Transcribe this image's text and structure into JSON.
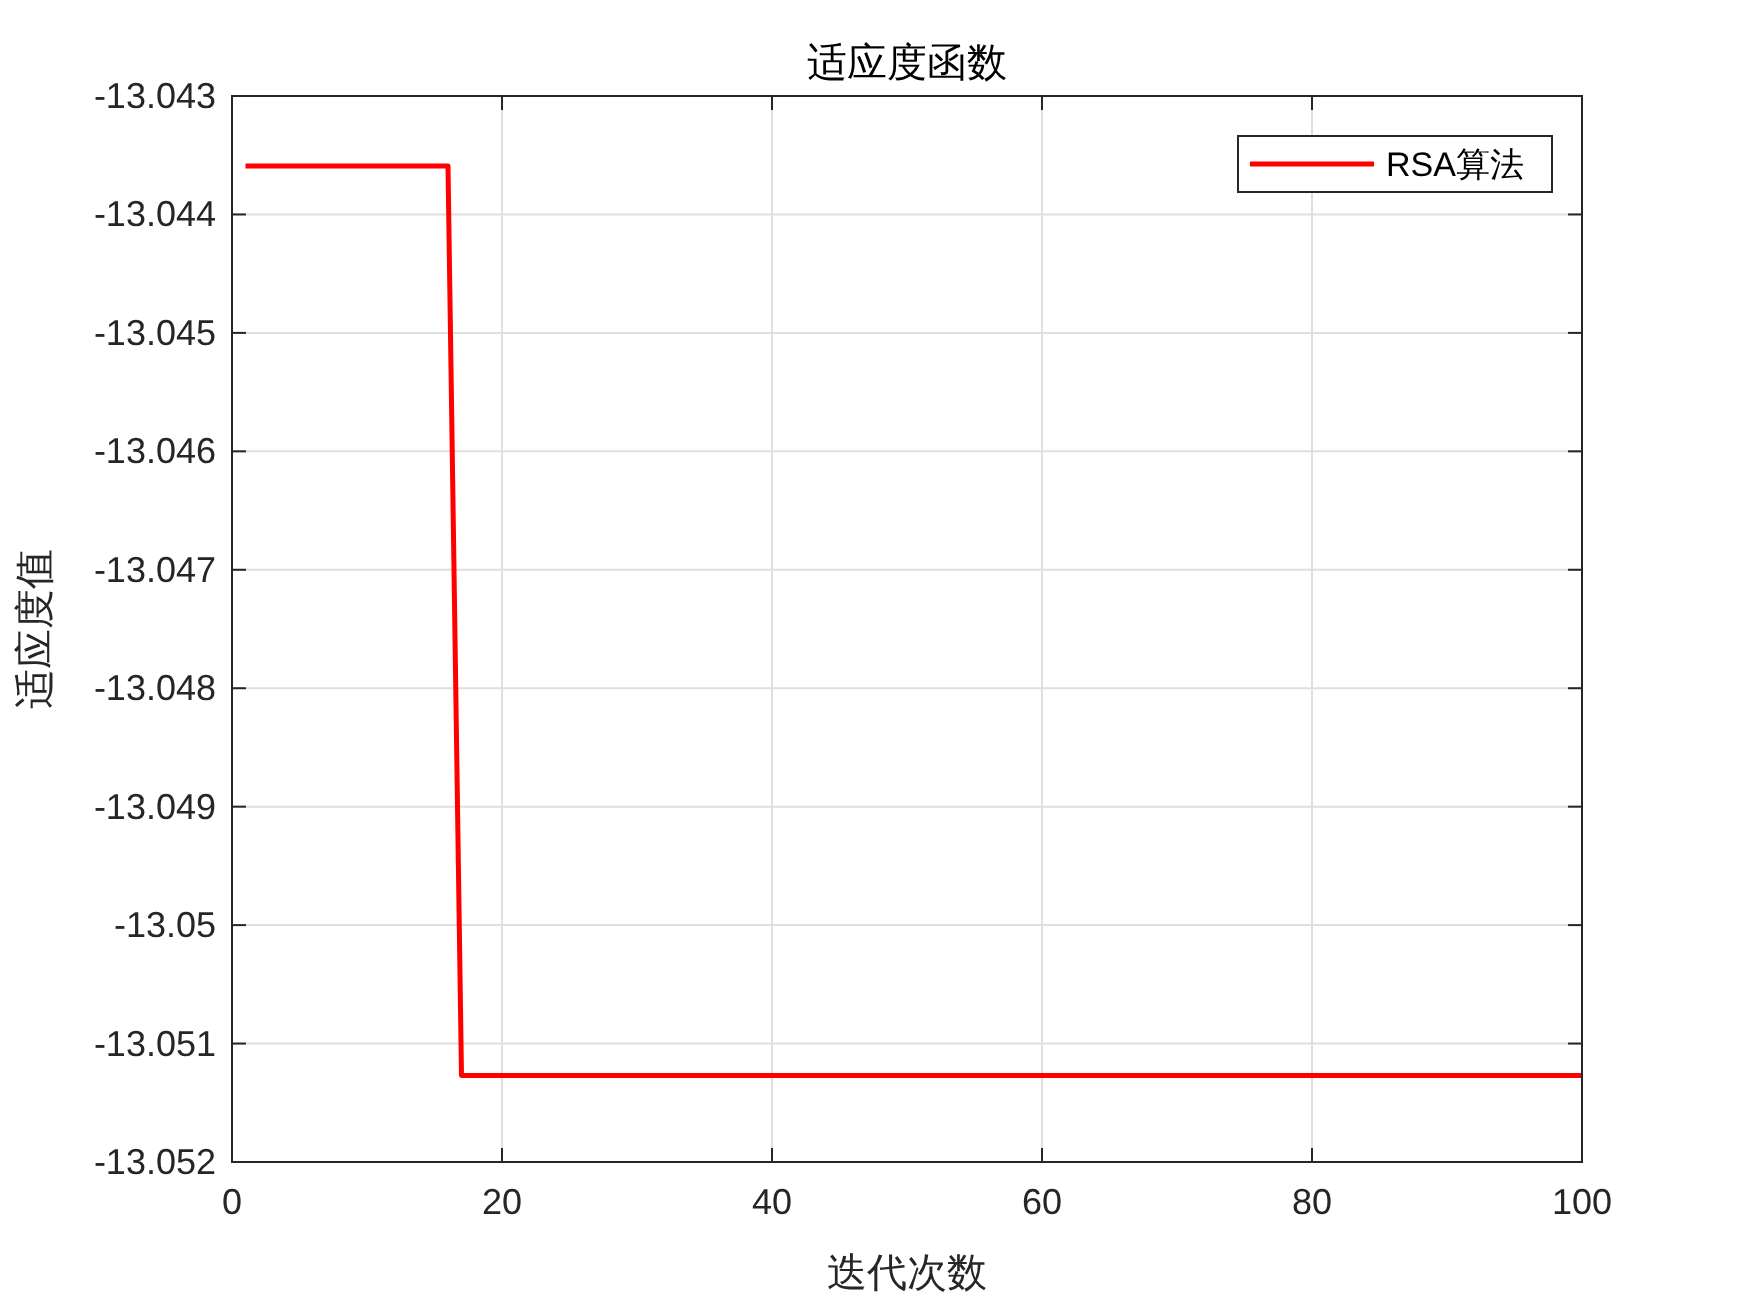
{
  "chart_data": {
    "type": "line",
    "title": "适应度函数",
    "xlabel": "迭代次数",
    "ylabel": "适应度值",
    "x": [
      1,
      16,
      17,
      100
    ],
    "series": [
      {
        "name": "RSA算法",
        "color": "#ff0000",
        "values": [
          -13.04359,
          -13.04359,
          -13.05127,
          -13.05127
        ]
      }
    ],
    "xlim": [
      0,
      100
    ],
    "xticks": [
      0,
      20,
      40,
      60,
      80,
      100
    ],
    "ylim": [
      -13.052,
      -13.043
    ],
    "yticks": [
      -13.052,
      -13.051,
      -13.05,
      -13.049,
      -13.048,
      -13.047,
      -13.046,
      -13.045,
      -13.044,
      -13.043
    ],
    "grid": true,
    "legend": "top right",
    "marker": "none",
    "line_style": "solid"
  }
}
